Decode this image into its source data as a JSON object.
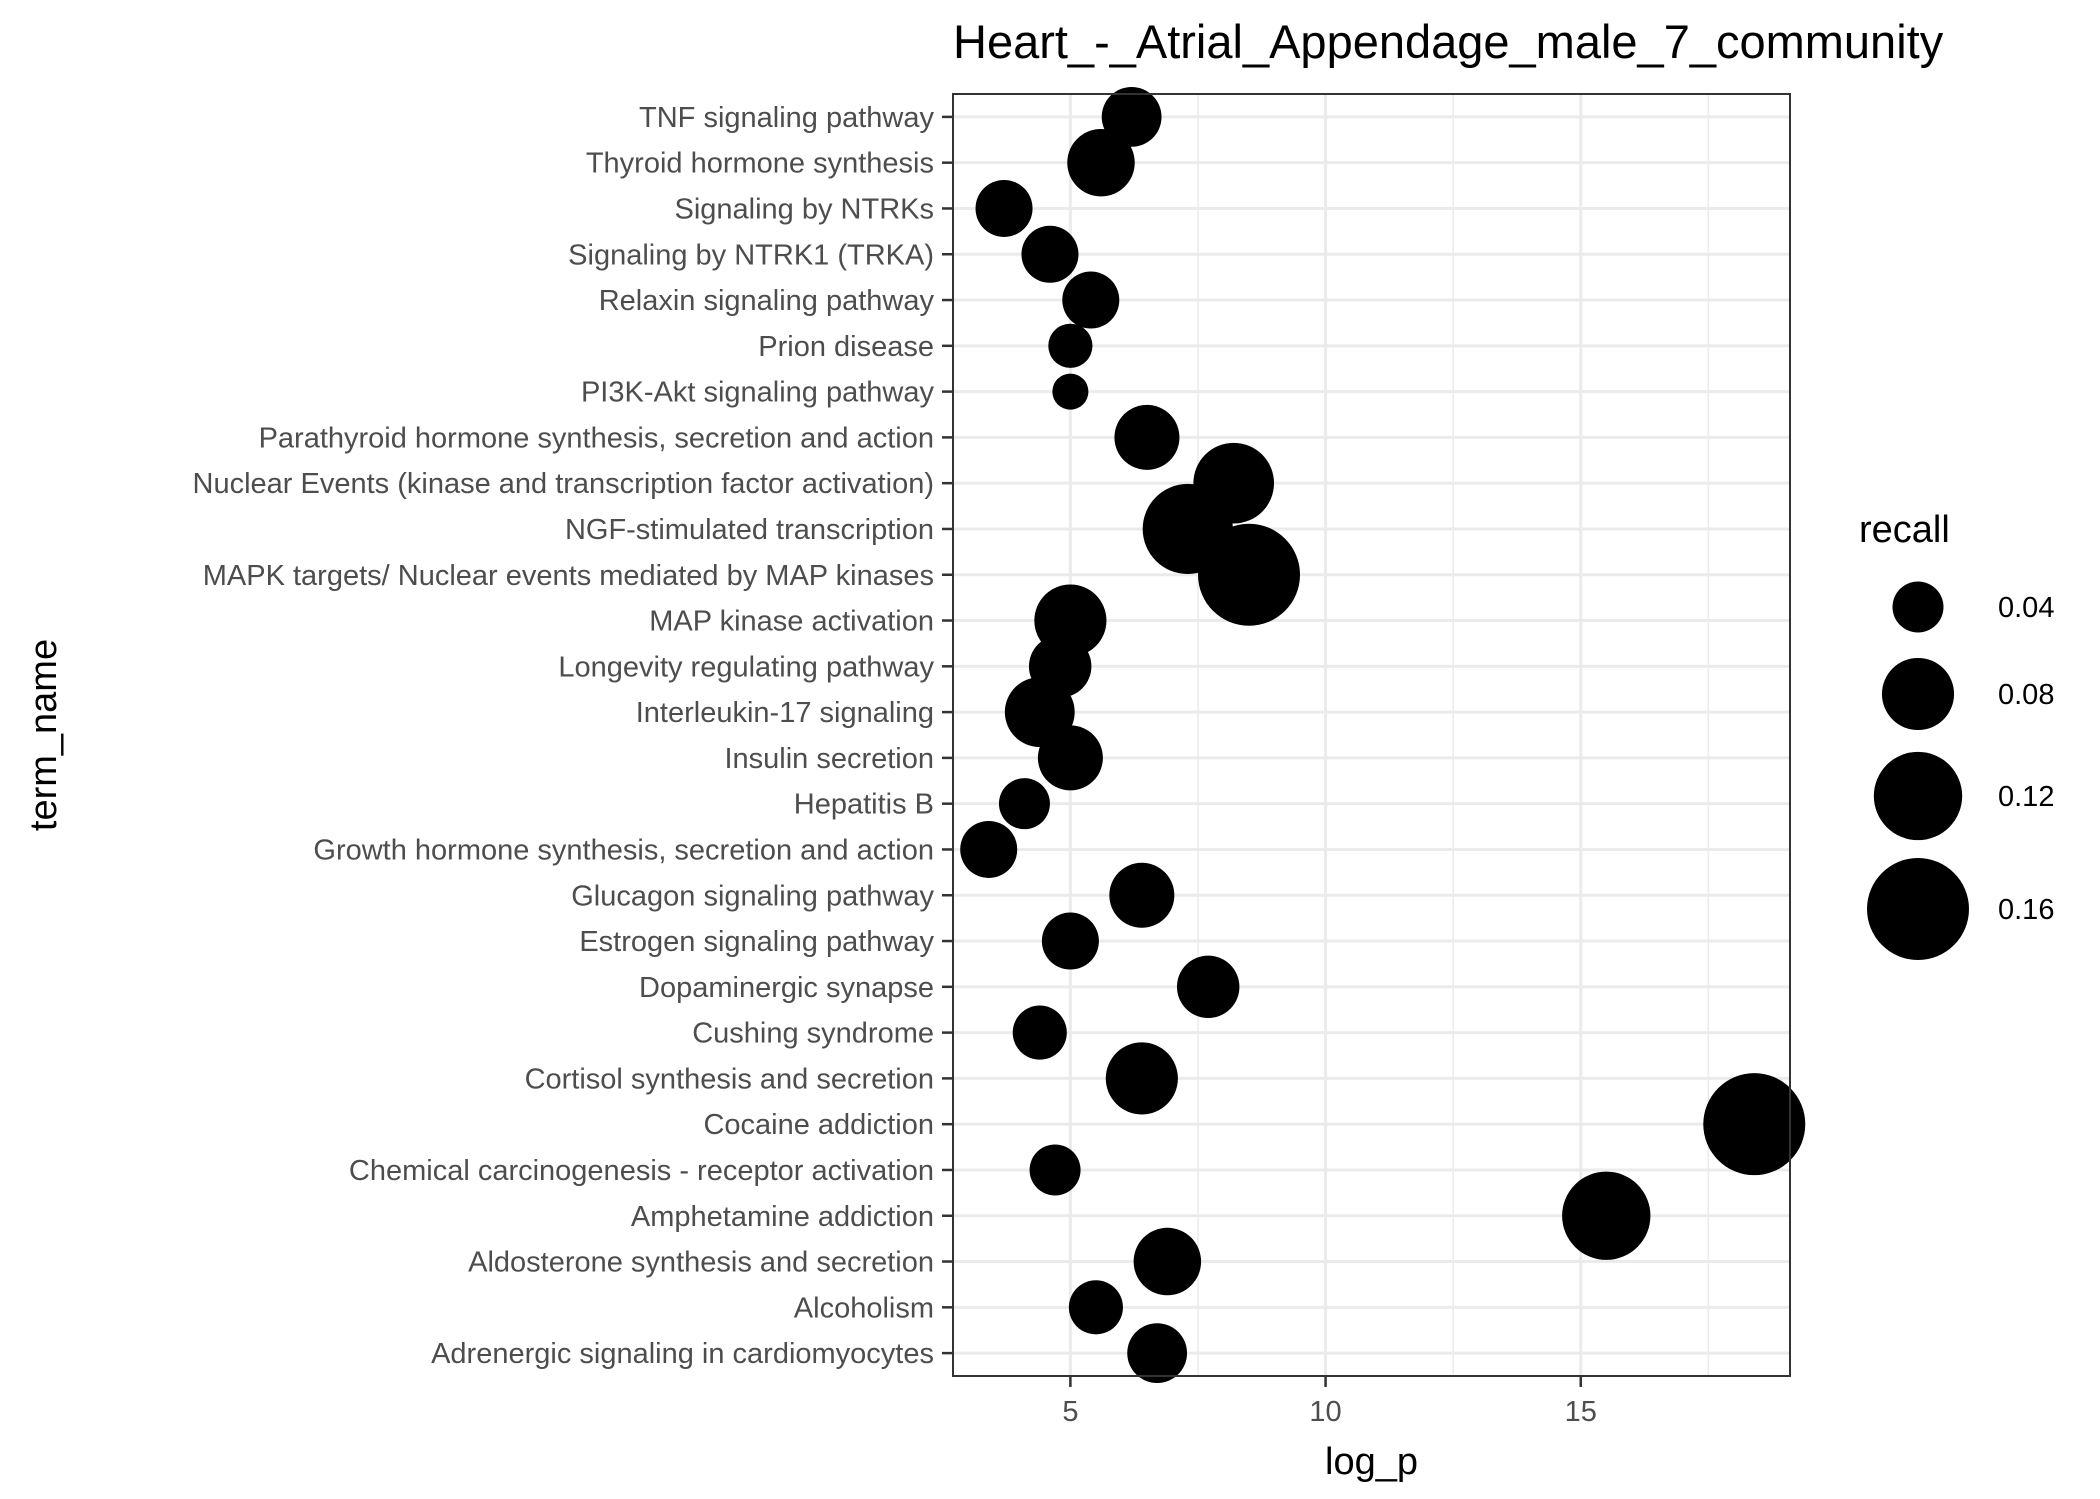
{
  "chart_data": {
    "type": "scatter",
    "title": "Heart_-_Atrial_Appendage_male_7_community",
    "xlabel": "log_p",
    "ylabel": "term_name",
    "xlim": [
      2.7,
      19.1
    ],
    "xticks": [
      5,
      10,
      15
    ],
    "grid": true,
    "legend_placement": "right",
    "legend": {
      "title": "recall",
      "entries": [
        {
          "label": "0.04",
          "value": 0.04
        },
        {
          "label": "0.08",
          "value": 0.08
        },
        {
          "label": "0.12",
          "value": 0.12
        },
        {
          "label": "0.16",
          "value": 0.16
        }
      ]
    },
    "point_color": "#000000",
    "categories": [
      "TNF signaling pathway",
      "Thyroid hormone synthesis",
      "Signaling by NTRKs",
      "Signaling by NTRK1 (TRKA)",
      "Relaxin signaling pathway",
      "Prion disease",
      "PI3K-Akt signaling pathway",
      "Parathyroid hormone synthesis, secretion and action",
      "Nuclear Events (kinase and transcription factor activation)",
      "NGF-stimulated transcription",
      "MAPK targets/ Nuclear events mediated by MAP kinases",
      "MAP kinase activation",
      "Longevity regulating pathway",
      "Interleukin-17 signaling",
      "Insulin secretion",
      "Hepatitis B",
      "Growth hormone synthesis, secretion and action",
      "Glucagon signaling pathway",
      "Estrogen signaling pathway",
      "Dopaminergic synapse",
      "Cushing syndrome",
      "Cortisol synthesis and secretion",
      "Cocaine addiction",
      "Chemical carcinogenesis - receptor activation",
      "Amphetamine addiction",
      "Aldosterone synthesis and secretion",
      "Alcoholism",
      "Adrenergic signaling in cardiomyocytes"
    ],
    "points": [
      {
        "term": "TNF signaling pathway",
        "log_p": 6.2,
        "recall": 0.055
      },
      {
        "term": "Thyroid hormone synthesis",
        "log_p": 5.6,
        "recall": 0.07
      },
      {
        "term": "Signaling by NTRKs",
        "log_p": 3.7,
        "recall": 0.05
      },
      {
        "term": "Signaling by NTRK1 (TRKA)",
        "log_p": 4.6,
        "recall": 0.05
      },
      {
        "term": "Relaxin signaling pathway",
        "log_p": 5.4,
        "recall": 0.05
      },
      {
        "term": "Prion disease",
        "log_p": 5.0,
        "recall": 0.03
      },
      {
        "term": "PI3K-Akt signaling pathway",
        "log_p": 5.0,
        "recall": 0.02
      },
      {
        "term": "Parathyroid hormone synthesis, secretion and action",
        "log_p": 6.5,
        "recall": 0.065
      },
      {
        "term": "Nuclear Events (kinase and transcription factor activation)",
        "log_p": 8.2,
        "recall": 0.1
      },
      {
        "term": "NGF-stimulated transcription",
        "log_p": 7.3,
        "recall": 0.125
      },
      {
        "term": "MAPK targets/ Nuclear events mediated by MAP kinases",
        "log_p": 8.5,
        "recall": 0.16
      },
      {
        "term": "MAP kinase activation",
        "log_p": 5.0,
        "recall": 0.08
      },
      {
        "term": "Longevity regulating pathway",
        "log_p": 4.8,
        "recall": 0.06
      },
      {
        "term": "Interleukin-17 signaling",
        "log_p": 4.4,
        "recall": 0.075
      },
      {
        "term": "Insulin secretion",
        "log_p": 5.0,
        "recall": 0.065
      },
      {
        "term": "Hepatitis B",
        "log_p": 4.1,
        "recall": 0.04
      },
      {
        "term": "Growth hormone synthesis, secretion and action",
        "log_p": 3.4,
        "recall": 0.05
      },
      {
        "term": "Glucagon signaling pathway",
        "log_p": 6.4,
        "recall": 0.065
      },
      {
        "term": "Estrogen signaling pathway",
        "log_p": 5.0,
        "recall": 0.05
      },
      {
        "term": "Dopaminergic synapse",
        "log_p": 7.7,
        "recall": 0.06
      },
      {
        "term": "Cushing syndrome",
        "log_p": 4.4,
        "recall": 0.045
      },
      {
        "term": "Cortisol synthesis and secretion",
        "log_p": 6.4,
        "recall": 0.08
      },
      {
        "term": "Cocaine addiction",
        "log_p": 18.4,
        "recall": 0.16
      },
      {
        "term": "Chemical carcinogenesis - receptor activation",
        "log_p": 4.7,
        "recall": 0.04
      },
      {
        "term": "Amphetamine addiction",
        "log_p": 15.5,
        "recall": 0.12
      },
      {
        "term": "Aldosterone synthesis and secretion",
        "log_p": 6.9,
        "recall": 0.07
      },
      {
        "term": "Alcoholism",
        "log_p": 5.5,
        "recall": 0.045
      },
      {
        "term": "Adrenergic signaling in cardiomyocytes",
        "log_p": 6.7,
        "recall": 0.055
      }
    ]
  }
}
